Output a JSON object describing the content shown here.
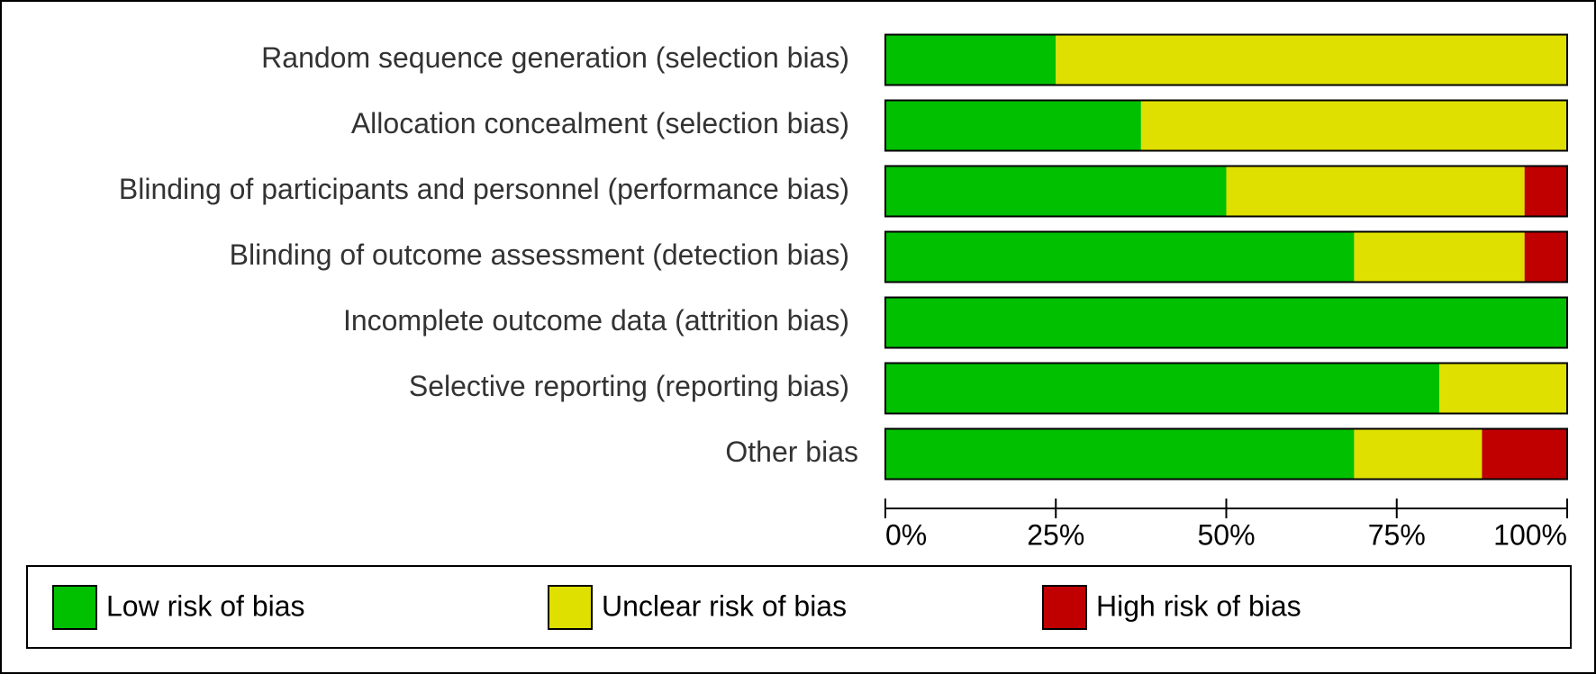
{
  "chart_data": {
    "type": "stacked-bar",
    "orientation": "horizontal",
    "categories": [
      "Random sequence generation (selection bias)",
      "Allocation concealment (selection bias)",
      "Blinding of participants and personnel (performance bias)",
      "Blinding of outcome assessment (detection bias)",
      "Incomplete outcome data (attrition bias)",
      "Selective reporting (reporting bias)",
      "Other bias"
    ],
    "series": [
      {
        "name": "Low risk of bias",
        "color": "#00c000",
        "values": [
          25,
          37.5,
          50,
          68.75,
          100,
          81.25,
          68.75
        ]
      },
      {
        "name": "Unclear risk of bias",
        "color": "#e0e000",
        "values": [
          75,
          62.5,
          43.75,
          25,
          0,
          18.75,
          18.75
        ]
      },
      {
        "name": "High risk of bias",
        "color": "#c00000",
        "values": [
          0,
          0,
          6.25,
          6.25,
          0,
          0,
          12.5
        ]
      }
    ],
    "xlim": [
      0,
      100
    ],
    "xticks": [
      {
        "value": 0,
        "label": "0%"
      },
      {
        "value": 25,
        "label": "25%"
      },
      {
        "value": 50,
        "label": "50%"
      },
      {
        "value": 75,
        "label": "75%"
      },
      {
        "value": 100,
        "label": "100%"
      }
    ],
    "legend": "bottom"
  }
}
